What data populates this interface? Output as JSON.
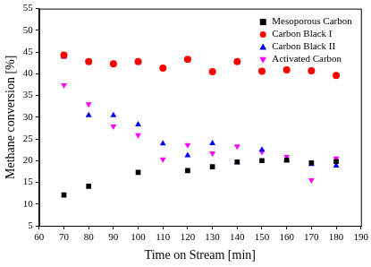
{
  "chart_data": {
    "type": "scatter",
    "x_label": "Time on Stream [min]",
    "y_label": "Methane conversion [%]",
    "xlim": [
      60,
      190
    ],
    "xticks": [
      60,
      70,
      80,
      90,
      100,
      110,
      120,
      130,
      140,
      150,
      160,
      170,
      180,
      190
    ],
    "ylim": [
      5,
      55
    ],
    "yticks": [
      5,
      10,
      15,
      20,
      25,
      30,
      35,
      40,
      45,
      50,
      55
    ],
    "grid": false,
    "legend": "upper right",
    "series": [
      {
        "name": "Mesoporous Carbon",
        "color": "#000000",
        "marker": "square",
        "x": [
          70,
          80,
          100,
          120,
          130,
          140,
          150,
          160,
          170,
          180
        ],
        "values": [
          12.1,
          14.1,
          17.3,
          17.7,
          18.6,
          19.7,
          20.0,
          20.1,
          19.5,
          19.8
        ]
      },
      {
        "name": "Carbon Black I",
        "color": "#ff0000",
        "marker": "circle",
        "x": [
          70,
          80,
          90,
          100,
          110,
          120,
          130,
          140,
          150,
          160,
          170,
          180
        ],
        "values": [
          44.3,
          42.8,
          42.3,
          42.8,
          41.3,
          43.3,
          40.5,
          42.8,
          40.6,
          40.9,
          40.7,
          39.6
        ]
      },
      {
        "name": "Carbon Black II",
        "color": "#0000ff",
        "marker": "triangle",
        "x": [
          70,
          80,
          90,
          100,
          110,
          120,
          130,
          140,
          150,
          160,
          170,
          180
        ],
        "values": [
          43.9,
          30.4,
          30.4,
          28.3,
          23.9,
          21.2,
          24.0,
          19.6,
          22.5,
          20.1,
          19.2,
          18.8
        ]
      },
      {
        "name": "Activated Carbon",
        "color": "#ff00ff",
        "marker": "triangle_down",
        "x": [
          70,
          80,
          90,
          100,
          110,
          120,
          130,
          140,
          150,
          160,
          170,
          180
        ],
        "values": [
          37.4,
          33.0,
          27.9,
          25.9,
          20.3,
          23.6,
          21.7,
          23.3,
          22.0,
          20.9,
          15.5,
          20.5
        ]
      }
    ]
  }
}
